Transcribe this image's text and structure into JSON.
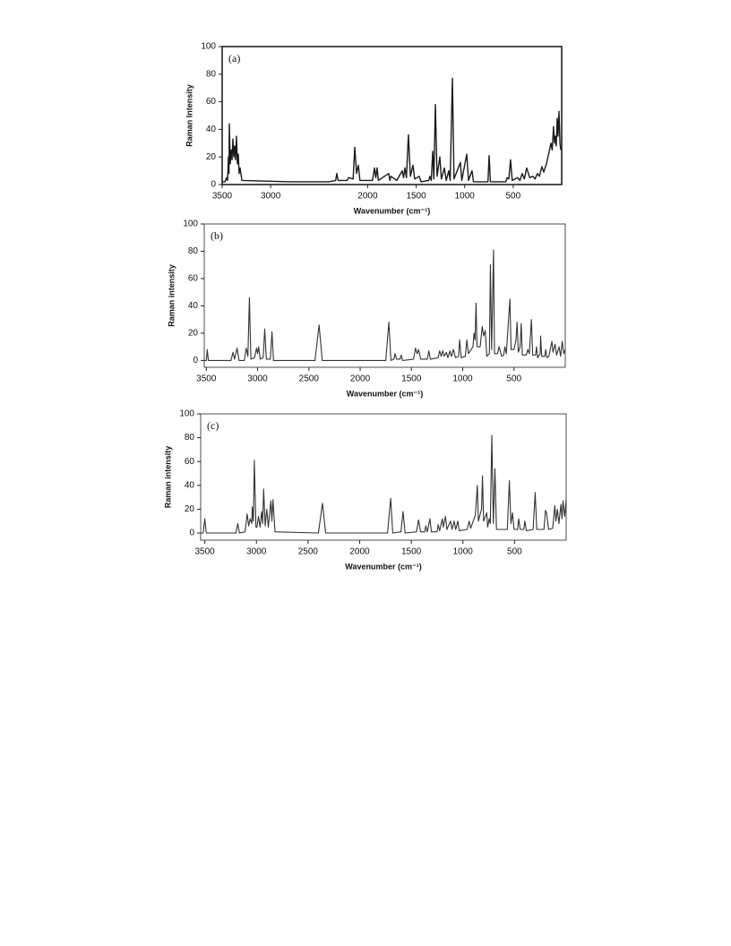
{
  "chart_data": [
    {
      "type": "line",
      "panel_label": "(a)",
      "ylabel": "Raman Intensity",
      "xlabel": "Wavenumber (cm⁻¹)",
      "color": "#1a1a1a",
      "xlim": [
        3500,
        0
      ],
      "ylim": [
        0,
        100
      ],
      "xticks": [
        3500,
        3000,
        2000,
        1500,
        1000,
        500
      ],
      "yticks": [
        0,
        20,
        40,
        60,
        80,
        100
      ],
      "x": [
        3500,
        3470,
        3454,
        3445,
        3435,
        3430,
        3426,
        3417,
        3408,
        3398,
        3389,
        3380,
        3371,
        3362,
        3352,
        3343,
        3334,
        3325,
        3315,
        3297,
        2800,
        2400,
        2330,
        2318,
        2305,
        2210,
        2198,
        2150,
        2133,
        2115,
        2096,
        2080,
        1950,
        1930,
        1916,
        1903,
        1890,
        1783,
        1770,
        1760,
        1700,
        1644,
        1630,
        1616,
        1600,
        1580,
        1560,
        1533,
        1515,
        1468,
        1450,
        1370,
        1358,
        1345,
        1330,
        1318,
        1302,
        1285,
        1256,
        1240,
        1210,
        1190,
        1164,
        1150,
        1127,
        1110,
        1044,
        1030,
        979,
        960,
        924,
        910,
        760,
        748,
        735,
        575,
        563,
        545,
        527,
        510,
        453,
        430,
        407,
        385,
        361,
        330,
        296,
        275,
        250,
        230,
        204,
        185,
        158,
        135,
        111,
        98,
        84,
        74,
        65,
        56,
        46,
        38,
        28,
        18,
        9
      ],
      "values": [
        2,
        2,
        5,
        3,
        20,
        8,
        44,
        15,
        25,
        18,
        33,
        20,
        28,
        18,
        35,
        15,
        22,
        8,
        12,
        3,
        2,
        2,
        3,
        8,
        3,
        3,
        5,
        4,
        27,
        8,
        14,
        3,
        3,
        12,
        5,
        12,
        3,
        8,
        3,
        6,
        3,
        10,
        5,
        12,
        5,
        36,
        6,
        14,
        4,
        6,
        2,
        3,
        6,
        3,
        24,
        4,
        58,
        6,
        20,
        4,
        12,
        3,
        10,
        3,
        77,
        4,
        16,
        3,
        22,
        3,
        10,
        2,
        2,
        21,
        2,
        2,
        5,
        4,
        18,
        3,
        5,
        3,
        8,
        4,
        12,
        5,
        6,
        4,
        8,
        6,
        13,
        9,
        15,
        22,
        30,
        25,
        42,
        30,
        35,
        28,
        48,
        35,
        53,
        30,
        25
      ]
    },
    {
      "type": "line",
      "panel_label": "(b)",
      "ylabel": "Raman intensity",
      "xlabel": "Wavenumber (cm⁻¹)",
      "color": "#333333",
      "xlim": [
        3520,
        0
      ],
      "ylim": [
        -5,
        100
      ],
      "xticks": [
        3500,
        3000,
        2500,
        2000,
        1500,
        1000,
        500
      ],
      "yticks": [
        0,
        20,
        40,
        60,
        80,
        100
      ],
      "x": [
        3520,
        3500,
        3490,
        3480,
        3260,
        3240,
        3225,
        3200,
        3180,
        3130,
        3110,
        3095,
        3080,
        3065,
        3030,
        3010,
        3000,
        2990,
        2975,
        2945,
        2930,
        2915,
        2875,
        2860,
        2845,
        2440,
        2400,
        2370,
        1750,
        1720,
        1700,
        1670,
        1660,
        1645,
        1610,
        1600,
        1585,
        1480,
        1460,
        1445,
        1430,
        1410,
        1345,
        1330,
        1315,
        1240,
        1225,
        1210,
        1195,
        1180,
        1160,
        1145,
        1125,
        1110,
        1090,
        1070,
        1040,
        1030,
        1015,
        975,
        960,
        945,
        900,
        890,
        880,
        870,
        860,
        830,
        810,
        795,
        780,
        765,
        740,
        730,
        718,
        700,
        690,
        660,
        645,
        620,
        600,
        590,
        575,
        540,
        528,
        500,
        480,
        470,
        458,
        440,
        430,
        418,
        380,
        365,
        350,
        330,
        318,
        290,
        280,
        270,
        245,
        240,
        230,
        200,
        190,
        180,
        160,
        130,
        120,
        100,
        85,
        60,
        45,
        30,
        15,
        0
      ],
      "values": [
        0,
        0,
        8,
        0,
        0,
        6,
        1,
        9,
        0,
        0,
        9,
        3,
        46,
        1,
        2,
        9,
        5,
        10,
        1,
        2,
        23,
        1,
        1,
        21,
        0,
        0,
        26,
        0,
        0,
        28,
        0,
        1,
        5,
        1,
        1,
        4,
        0,
        1,
        9,
        5,
        8,
        1,
        1,
        7,
        1,
        2,
        7,
        3,
        7,
        3,
        6,
        2,
        7,
        3,
        8,
        2,
        3,
        15,
        2,
        3,
        15,
        5,
        10,
        20,
        15,
        42,
        10,
        10,
        25,
        18,
        22,
        3,
        5,
        70,
        8,
        81,
        5,
        5,
        10,
        3,
        4,
        10,
        5,
        45,
        8,
        8,
        15,
        28,
        6,
        10,
        27,
        4,
        4,
        8,
        5,
        30,
        4,
        4,
        10,
        2,
        5,
        18,
        3,
        3,
        8,
        2,
        3,
        14,
        6,
        12,
        4,
        10,
        3,
        14,
        5,
        8
      ]
    },
    {
      "type": "line",
      "panel_label": "(c)",
      "ylabel": "Raman intensity",
      "xlabel": "Wavenumber (cm⁻¹)",
      "color": "#333333",
      "xlim": [
        3540,
        0
      ],
      "ylim": [
        -6,
        100
      ],
      "xticks": [
        3500,
        3000,
        2500,
        2000,
        1500,
        1000,
        500
      ],
      "yticks": [
        0,
        20,
        40,
        60,
        80,
        100
      ],
      "x": [
        3540,
        3515,
        3500,
        3485,
        3200,
        3180,
        3165,
        3110,
        3090,
        3075,
        3060,
        3045,
        3040,
        3030,
        3020,
        3005,
        2995,
        2980,
        2965,
        2950,
        2940,
        2930,
        2915,
        2900,
        2885,
        2860,
        2850,
        2840,
        2820,
        2400,
        2360,
        2330,
        1730,
        1700,
        1680,
        1600,
        1580,
        1560,
        1450,
        1430,
        1410,
        1370,
        1360,
        1345,
        1320,
        1305,
        1250,
        1240,
        1225,
        1200,
        1190,
        1170,
        1155,
        1120,
        1105,
        1085,
        1070,
        1050,
        1035,
        960,
        940,
        925,
        880,
        860,
        850,
        820,
        810,
        800,
        770,
        760,
        745,
        735,
        720,
        705,
        690,
        675,
        570,
        550,
        535,
        520,
        505,
        470,
        460,
        445,
        410,
        400,
        385,
        320,
        300,
        285,
        215,
        200,
        190,
        170,
        130,
        110,
        100,
        85,
        70,
        50,
        40,
        30,
        15,
        0
      ],
      "values": [
        0,
        0,
        12,
        0,
        0,
        8,
        0,
        1,
        16,
        6,
        12,
        8,
        22,
        10,
        61,
        5,
        5,
        14,
        5,
        18,
        8,
        37,
        6,
        20,
        5,
        27,
        10,
        28,
        1,
        0,
        25,
        0,
        0,
        29,
        0,
        1,
        18,
        0,
        1,
        11,
        1,
        1,
        6,
        1,
        12,
        1,
        1,
        7,
        2,
        12,
        5,
        14,
        3,
        10,
        3,
        10,
        3,
        10,
        2,
        3,
        10,
        4,
        15,
        40,
        10,
        20,
        48,
        10,
        17,
        5,
        12,
        8,
        82,
        8,
        54,
        3,
        3,
        44,
        8,
        17,
        3,
        3,
        12,
        3,
        3,
        10,
        2,
        3,
        34,
        3,
        3,
        19,
        17,
        3,
        4,
        23,
        10,
        20,
        8,
        24,
        12,
        27,
        14,
        28
      ]
    }
  ]
}
